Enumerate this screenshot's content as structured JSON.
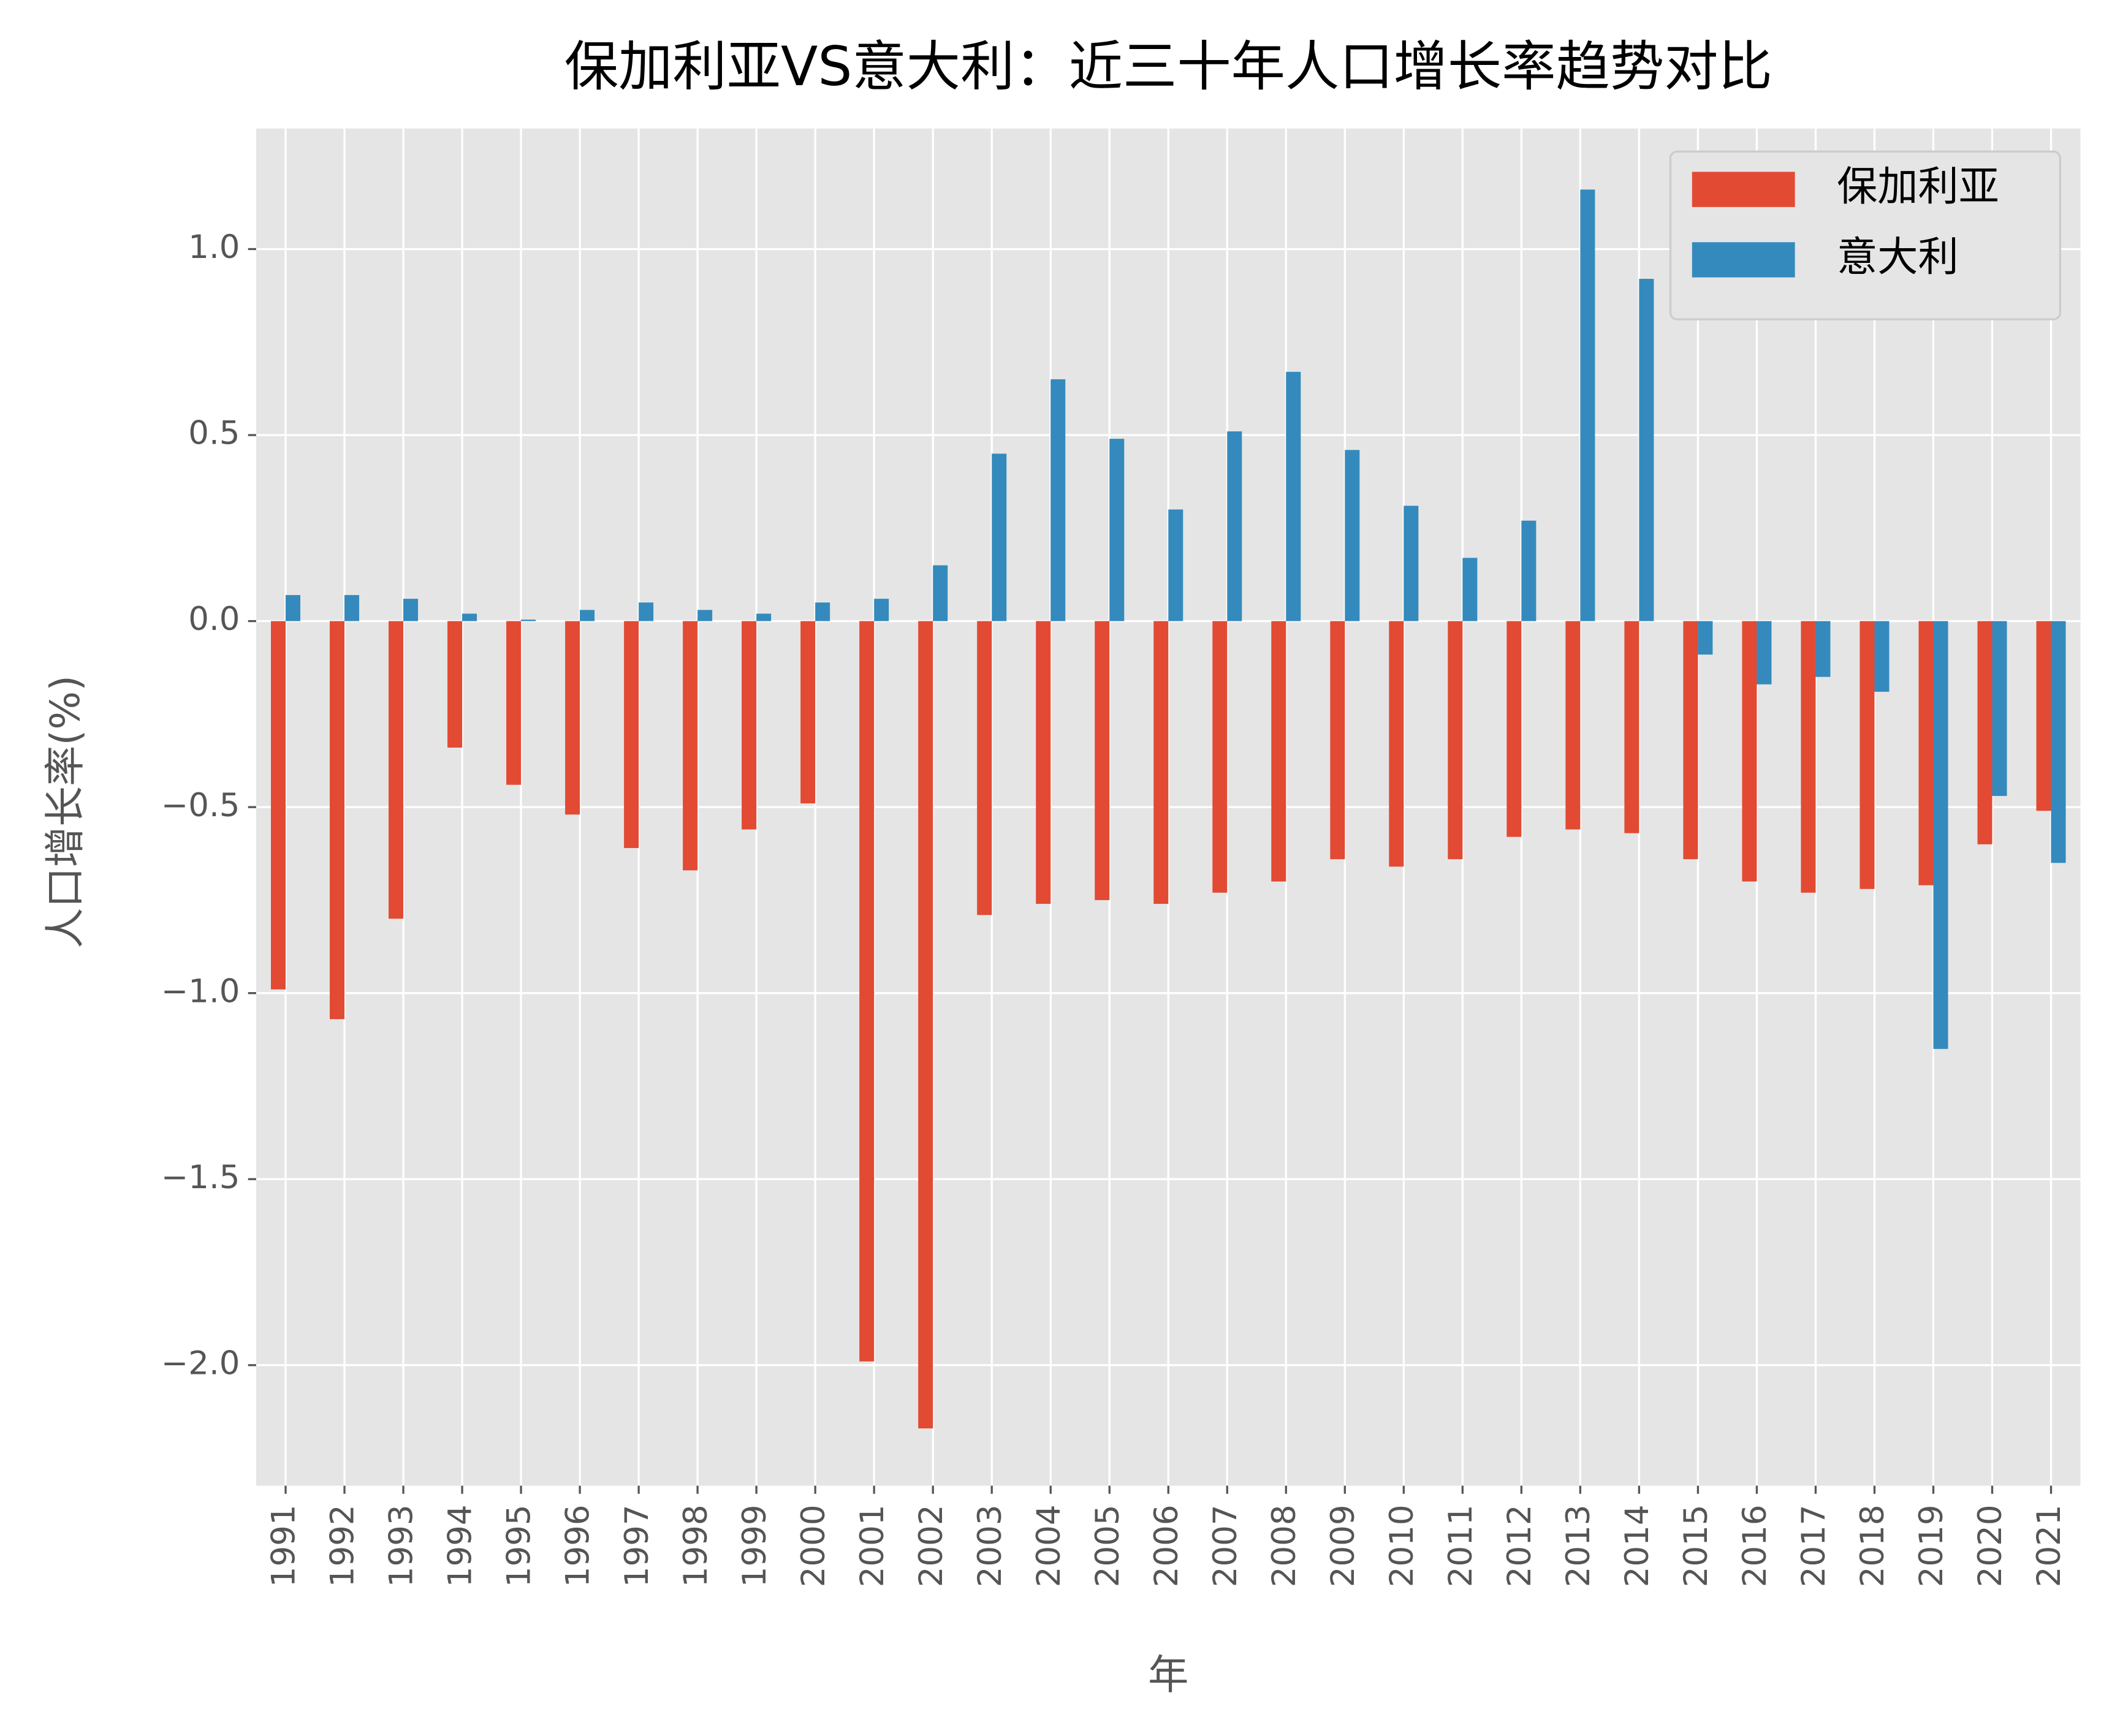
{
  "chart_data": {
    "type": "bar",
    "title": "保加利亚VS意大利：近三十年人口增长率趋势对比",
    "x_label": "年",
    "y_label": "人口增长率(%)",
    "categories": [
      "1991",
      "1992",
      "1993",
      "1994",
      "1995",
      "1996",
      "1997",
      "1998",
      "1999",
      "2000",
      "2001",
      "2002",
      "2003",
      "2004",
      "2005",
      "2006",
      "2007",
      "2008",
      "2009",
      "2010",
      "2011",
      "2012",
      "2013",
      "2014",
      "2015",
      "2016",
      "2017",
      "2018",
      "2019",
      "2020",
      "2021"
    ],
    "series": [
      {
        "name": "保加利亚",
        "color": "#E24A33",
        "values": [
          -0.99,
          -1.07,
          -0.8,
          -0.34,
          -0.44,
          -0.52,
          -0.61,
          -0.67,
          -0.56,
          -0.49,
          -1.99,
          -2.17,
          -0.79,
          -0.76,
          -0.75,
          -0.76,
          -0.73,
          -0.7,
          -0.64,
          -0.66,
          -0.64,
          -0.58,
          -0.56,
          -0.57,
          -0.64,
          -0.7,
          -0.73,
          -0.72,
          -0.71,
          -0.6,
          -0.51
        ]
      },
      {
        "name": "意大利",
        "color": "#348ABD",
        "values": [
          0.07,
          0.07,
          0.06,
          0.02,
          0.004,
          0.03,
          0.05,
          0.03,
          0.02,
          0.05,
          0.06,
          0.15,
          0.45,
          0.65,
          0.49,
          0.3,
          0.51,
          0.67,
          0.46,
          0.31,
          0.17,
          0.27,
          1.16,
          0.92,
          -0.09,
          -0.17,
          -0.15,
          -0.19,
          -1.15,
          -0.47,
          -0.65
        ]
      }
    ],
    "ylim": [
      -2.324,
      1.324
    ],
    "yticks": [
      {
        "value": -2.0,
        "label": "−2.0"
      },
      {
        "value": -1.5,
        "label": "−1.5"
      },
      {
        "value": -1.0,
        "label": "−1.0"
      },
      {
        "value": -0.5,
        "label": "−0.5"
      },
      {
        "value": 0.0,
        "label": "0.0"
      },
      0.5,
      {
        "value": 1.0,
        "label": "1.0"
      }
    ],
    "grid": true,
    "legend": "upper right"
  }
}
